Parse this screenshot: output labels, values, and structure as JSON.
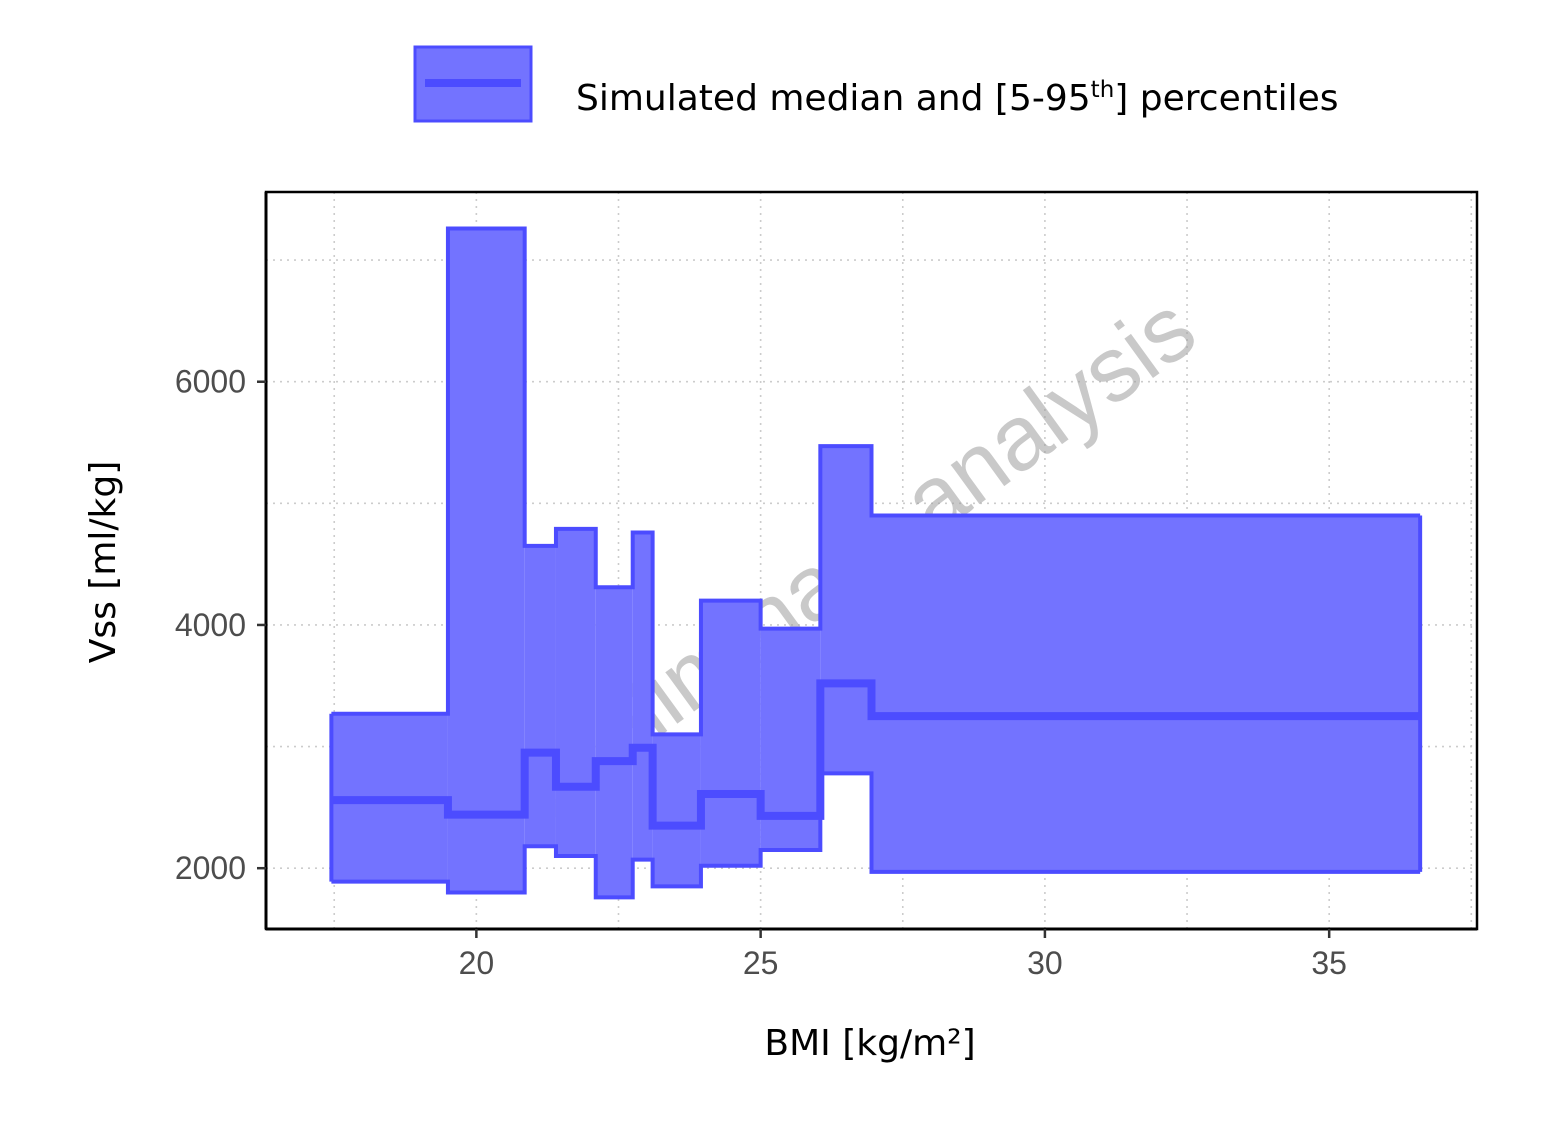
{
  "chart_data": {
    "type": "area",
    "xlabel": "BMI [kg/m²]",
    "ylabel": "Vss [ml/kg]",
    "xlim": [
      16.3,
      37.6
    ],
    "ylim": [
      1500,
      7560
    ],
    "xticks": [
      20,
      25,
      30,
      35
    ],
    "yticks": [
      2000,
      4000,
      6000
    ],
    "grid": true,
    "watermark": "preliminary analysis",
    "legend": {
      "position": "top",
      "label_main": "Simulated median and [5-95",
      "label_sup": "th",
      "label_end": "] percentiles"
    },
    "colors": {
      "band_fill": "#7373ff",
      "band_edge": "#4c4cff",
      "median": "#4c4cff"
    },
    "bins": [
      {
        "x0": 17.45,
        "x1": 19.5,
        "p5": 1890,
        "median": 2560,
        "p95": 3270
      },
      {
        "x0": 19.5,
        "x1": 20.85,
        "p5": 1800,
        "median": 2440,
        "p95": 7260
      },
      {
        "x0": 20.85,
        "x1": 21.4,
        "p5": 2180,
        "median": 2950,
        "p95": 4650
      },
      {
        "x0": 21.4,
        "x1": 22.1,
        "p5": 2100,
        "median": 2670,
        "p95": 4790
      },
      {
        "x0": 22.1,
        "x1": 22.75,
        "p5": 1760,
        "median": 2880,
        "p95": 4310
      },
      {
        "x0": 22.75,
        "x1": 23.1,
        "p5": 2070,
        "median": 2990,
        "p95": 4760
      },
      {
        "x0": 23.1,
        "x1": 23.95,
        "p5": 1850,
        "median": 2350,
        "p95": 3100
      },
      {
        "x0": 23.95,
        "x1": 25.0,
        "p5": 2020,
        "median": 2610,
        "p95": 4200
      },
      {
        "x0": 25.0,
        "x1": 26.05,
        "p5": 2150,
        "median": 2430,
        "p95": 3970
      },
      {
        "x0": 26.05,
        "x1": 26.95,
        "p5": 2780,
        "median": 3520,
        "p95": 5470
      },
      {
        "x0": 26.95,
        "x1": 36.6,
        "p5": 1970,
        "median": 3250,
        "p95": 4900
      }
    ]
  }
}
